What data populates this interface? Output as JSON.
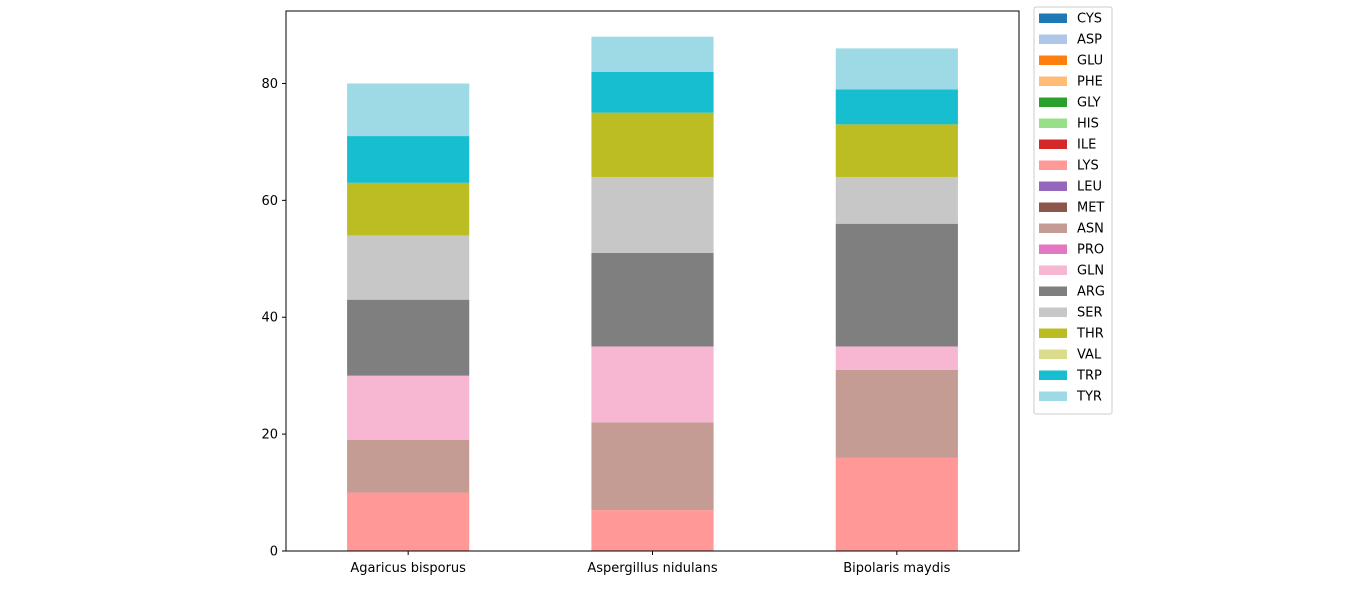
{
  "chart_data": {
    "type": "bar",
    "stacked": true,
    "categories": [
      "Agaricus bisporus",
      "Aspergillus nidulans",
      "Bipolaris maydis"
    ],
    "ylim": [
      0,
      92.4
    ],
    "yticks": [
      0,
      20,
      40,
      60,
      80
    ],
    "grid": false,
    "legend_position": "outside-right",
    "series": [
      {
        "name": "CYS",
        "color": "#1f77b4",
        "values": [
          0,
          0,
          0
        ]
      },
      {
        "name": "ASP",
        "color": "#aec7e8",
        "values": [
          0,
          0,
          0
        ]
      },
      {
        "name": "GLU",
        "color": "#ff7f0e",
        "values": [
          0,
          0,
          0
        ]
      },
      {
        "name": "PHE",
        "color": "#ffbb78",
        "values": [
          0,
          0,
          0
        ]
      },
      {
        "name": "GLY",
        "color": "#2ca02c",
        "values": [
          0,
          0,
          0
        ]
      },
      {
        "name": "HIS",
        "color": "#98df8a",
        "values": [
          0,
          0,
          0
        ]
      },
      {
        "name": "ILE",
        "color": "#d62728",
        "values": [
          0,
          0,
          0
        ]
      },
      {
        "name": "LYS",
        "color": "#ff9896",
        "values": [
          10,
          7,
          16
        ]
      },
      {
        "name": "LEU",
        "color": "#9467bd",
        "values": [
          0,
          0,
          0
        ]
      },
      {
        "name": "MET",
        "color": "#8c564b",
        "values": [
          0,
          0,
          0
        ]
      },
      {
        "name": "ASN",
        "color": "#c49c94",
        "values": [
          9,
          15,
          15
        ]
      },
      {
        "name": "PRO",
        "color": "#e377c2",
        "values": [
          0,
          0,
          0
        ]
      },
      {
        "name": "GLN",
        "color": "#f7b6d2",
        "values": [
          11,
          13,
          4
        ]
      },
      {
        "name": "ARG",
        "color": "#7f7f7f",
        "values": [
          13,
          16,
          21
        ]
      },
      {
        "name": "SER",
        "color": "#c7c7c7",
        "values": [
          11,
          13,
          8
        ]
      },
      {
        "name": "THR",
        "color": "#bcbd22",
        "values": [
          9,
          11,
          9
        ]
      },
      {
        "name": "VAL",
        "color": "#dbdb8d",
        "values": [
          0,
          0,
          0
        ]
      },
      {
        "name": "TRP",
        "color": "#17becf",
        "values": [
          8,
          7,
          6
        ]
      },
      {
        "name": "TYR",
        "color": "#9edae5",
        "values": [
          9,
          6,
          7
        ]
      }
    ]
  }
}
